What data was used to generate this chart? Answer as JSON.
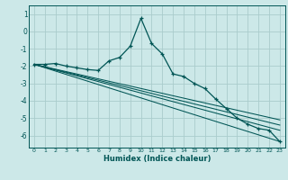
{
  "title": "",
  "xlabel": "Humidex (Indice chaleur)",
  "background_color": "#cce8e8",
  "grid_color": "#aacccc",
  "line_color": "#005555",
  "xlim": [
    -0.5,
    23.5
  ],
  "ylim": [
    -6.7,
    1.5
  ],
  "yticks": [
    1,
    0,
    -1,
    -2,
    -3,
    -4,
    -5,
    -6
  ],
  "xticks": [
    0,
    1,
    2,
    3,
    4,
    5,
    6,
    7,
    8,
    9,
    10,
    11,
    12,
    13,
    14,
    15,
    16,
    17,
    18,
    19,
    20,
    21,
    22,
    23
  ],
  "series": [
    [
      0,
      -1.9
    ],
    [
      1,
      -1.9
    ],
    [
      2,
      -1.85
    ],
    [
      3,
      -2.0
    ],
    [
      4,
      -2.1
    ],
    [
      5,
      -2.2
    ],
    [
      6,
      -2.25
    ],
    [
      7,
      -1.7
    ],
    [
      8,
      -1.5
    ],
    [
      9,
      -0.85
    ],
    [
      10,
      0.75
    ],
    [
      11,
      -0.7
    ],
    [
      12,
      -1.3
    ],
    [
      13,
      -2.45
    ],
    [
      14,
      -2.6
    ],
    [
      15,
      -3.0
    ],
    [
      16,
      -3.3
    ],
    [
      17,
      -3.9
    ],
    [
      18,
      -4.45
    ],
    [
      19,
      -5.0
    ],
    [
      20,
      -5.35
    ],
    [
      21,
      -5.6
    ],
    [
      22,
      -5.7
    ],
    [
      23,
      -6.35
    ]
  ],
  "line2": [
    [
      0,
      -1.9
    ],
    [
      23,
      -5.1
    ]
  ],
  "line3": [
    [
      0,
      -1.9
    ],
    [
      23,
      -5.4
    ]
  ],
  "line4": [
    [
      0,
      -1.9
    ],
    [
      23,
      -5.7
    ]
  ],
  "line5": [
    [
      0,
      -1.9
    ],
    [
      23,
      -6.35
    ]
  ]
}
